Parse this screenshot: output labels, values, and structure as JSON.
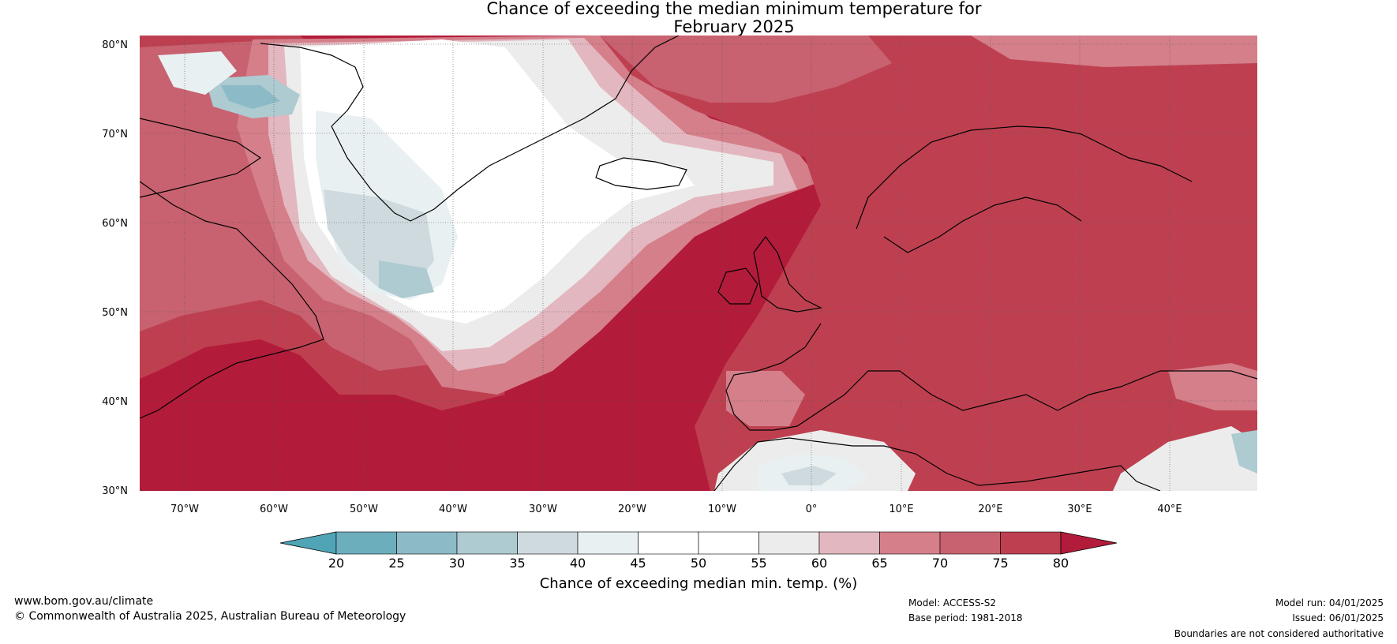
{
  "title_line1": "Chance of exceeding the median minimum temperature for",
  "title_line2": "February 2025",
  "lat_labels": [
    "80°N",
    "70°N",
    "60°N",
    "50°N",
    "40°N",
    "30°N"
  ],
  "lon_labels": [
    "70°W",
    "60°W",
    "50°W",
    "40°W",
    "30°W",
    "20°W",
    "10°W",
    "0°",
    "10°E",
    "20°E",
    "30°E",
    "40°E"
  ],
  "colorbar": {
    "ticks": [
      "20",
      "25",
      "30",
      "35",
      "40",
      "45",
      "50",
      "55",
      "60",
      "65",
      "70",
      "75",
      "80"
    ],
    "colors": [
      "#4fa5b5",
      "#6daebd",
      "#8cbac6",
      "#adcbd1",
      "#cfdadf",
      "#e8f0f2",
      "#ffffff",
      "#ffffff",
      "#ececec",
      "#e3b7bf",
      "#d47f8a",
      "#c86270",
      "#be4050",
      "#b31b3a"
    ],
    "label": "Chance of exceeding median min. temp. (%)"
  },
  "map_colors": {
    "deep_red": "#b31b3a",
    "red": "#be4050",
    "mid_red": "#c86270",
    "pink": "#d47f8a",
    "light_pink": "#e3b7bf",
    "grey_white": "#ececec",
    "white": "#ffffff",
    "pale_blue": "#e8f0f2",
    "grey_blue": "#cfdadf",
    "blue": "#adcbd1",
    "teal": "#8cbac6"
  },
  "footer": {
    "website": "www.bom.gov.au/climate",
    "copyright": "© Commonwealth of Australia 2025, Australian Bureau of Meteorology",
    "model": "Model: ACCESS-S2",
    "base_period": "Base period: 1981-2018",
    "model_run": "Model run: 04/01/2025",
    "issued": "Issued: 06/01/2025",
    "disclaimer": "Boundaries are not considered authoritative"
  }
}
